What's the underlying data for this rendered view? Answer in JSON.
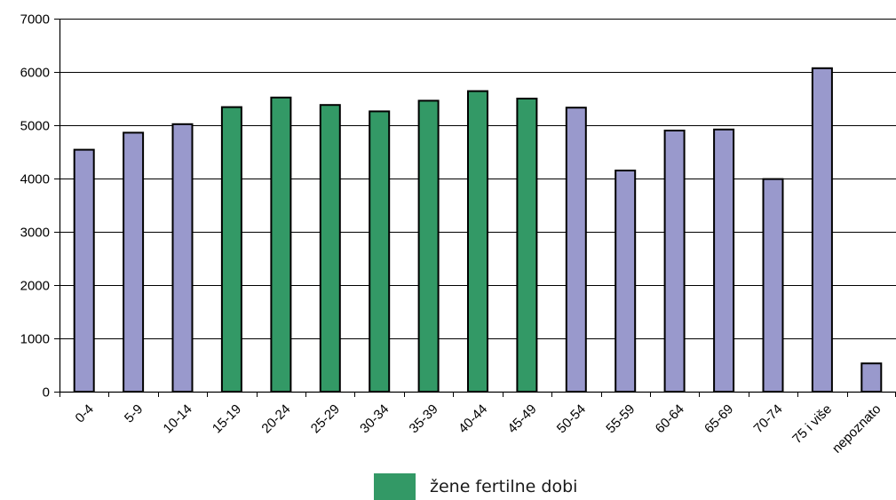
{
  "chart_data": {
    "type": "bar",
    "categories": [
      "0-4",
      "5-9",
      "10-14",
      "15-19",
      "20-24",
      "25-29",
      "30-34",
      "35-39",
      "40-44",
      "45-49",
      "50-54",
      "55-59",
      "60-64",
      "65-69",
      "70-74",
      "75 i više",
      "nepoznato"
    ],
    "values": [
      4540,
      4860,
      5020,
      5340,
      5520,
      5380,
      5260,
      5460,
      5640,
      5500,
      5330,
      4150,
      4900,
      4920,
      3990,
      6070,
      530
    ],
    "highlight": [
      false,
      false,
      false,
      true,
      true,
      true,
      true,
      true,
      true,
      true,
      false,
      false,
      false,
      false,
      false,
      false,
      false
    ],
    "colors": {
      "default": "#9999cc",
      "highlight": "#339966",
      "outline": "#000000"
    },
    "ylim": [
      0,
      7000
    ],
    "yticks": [
      0,
      1000,
      2000,
      3000,
      4000,
      5000,
      6000,
      7000
    ],
    "grid": true,
    "legend": {
      "position": "bottom-center",
      "entries": [
        {
          "label": "žene fertilne dobi",
          "color": "#339966"
        }
      ]
    }
  }
}
